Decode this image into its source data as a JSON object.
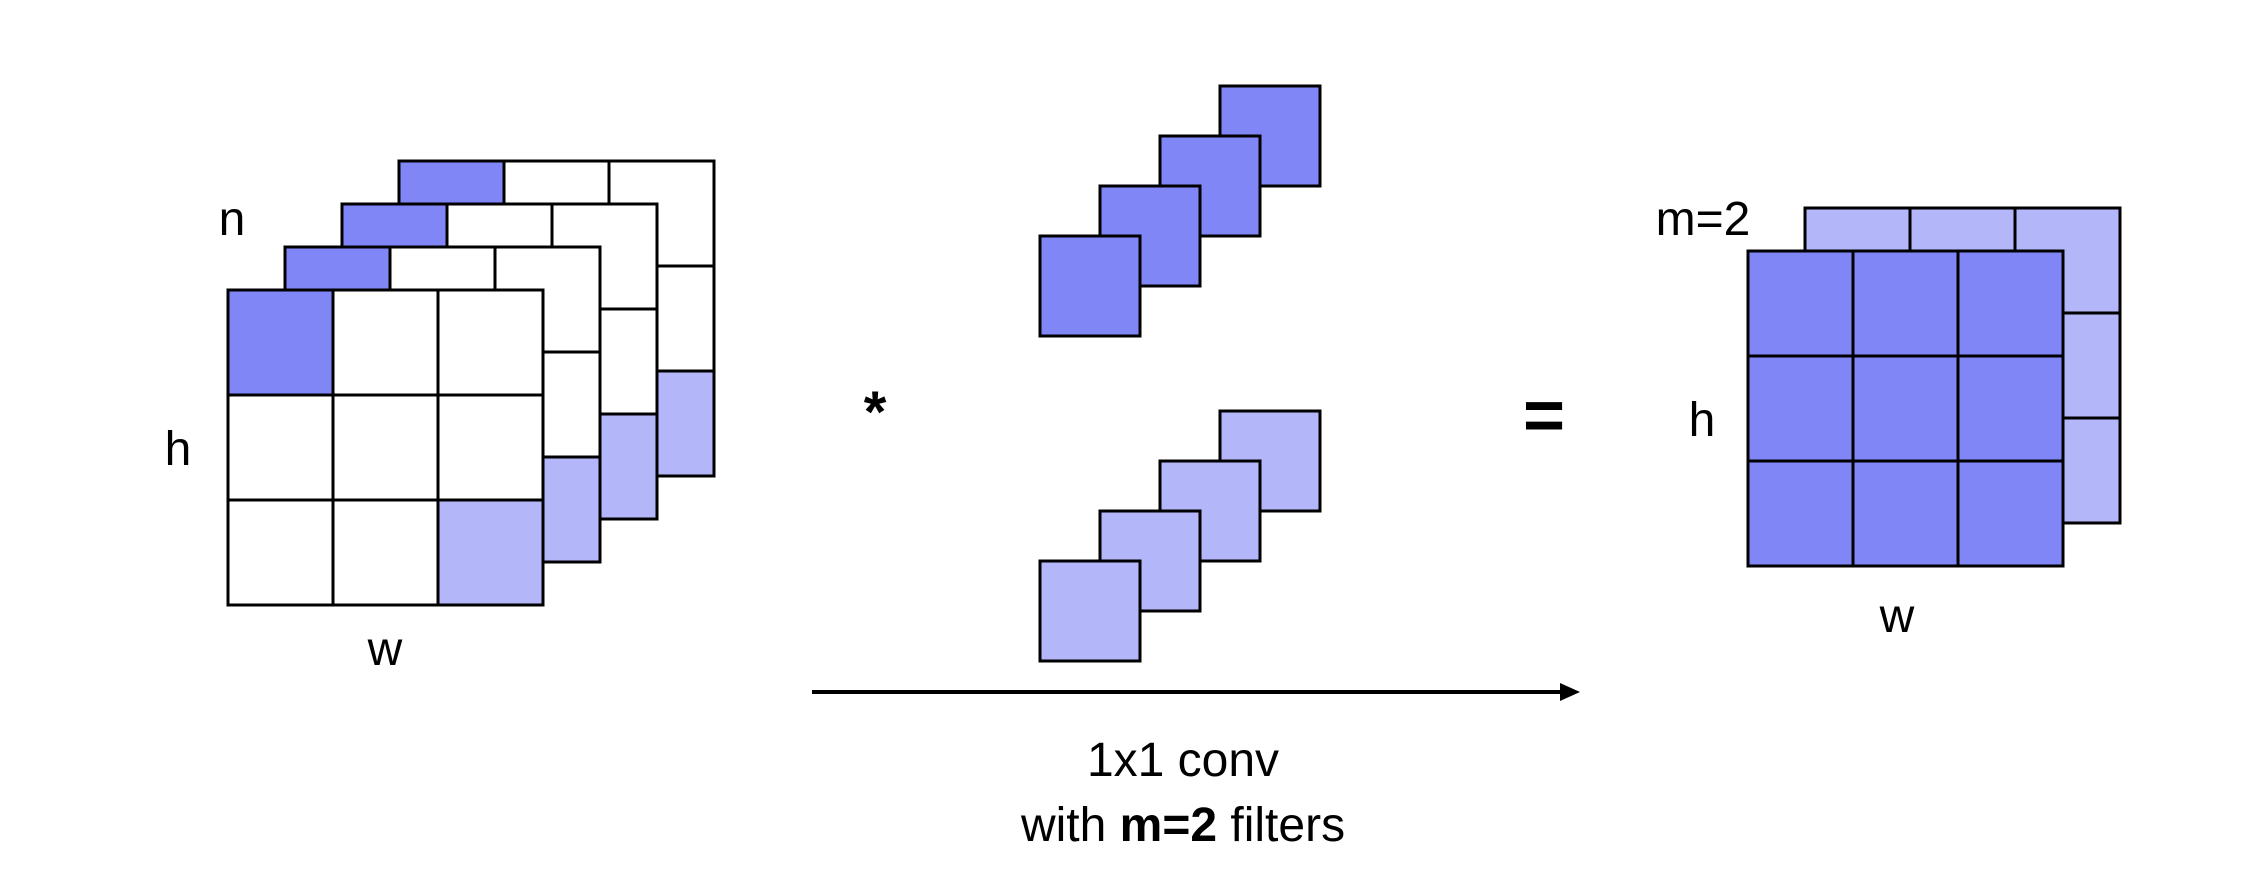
{
  "labels": {
    "input_channels": "n",
    "input_height": "h",
    "input_width": "w",
    "operator": "*",
    "equals": "=",
    "output_channels": "m=2",
    "output_height": "h",
    "output_width": "w",
    "caption_line1": "1x1 conv",
    "caption_line2_prefix": "with ",
    "caption_line2_bold": "m=2",
    "caption_line2_suffix": " filters"
  },
  "colors": {
    "dark_fill": "#8186f7",
    "light_fill": "#b3b6f8",
    "stroke": "#000000",
    "background": "#ffffff"
  },
  "grid": {
    "rows": 3,
    "cols": 3
  },
  "input_layers": 4,
  "filters": [
    {
      "color": "dark",
      "cubes": 4
    },
    {
      "color": "light",
      "cubes": 4
    }
  ],
  "output_layers": 2
}
